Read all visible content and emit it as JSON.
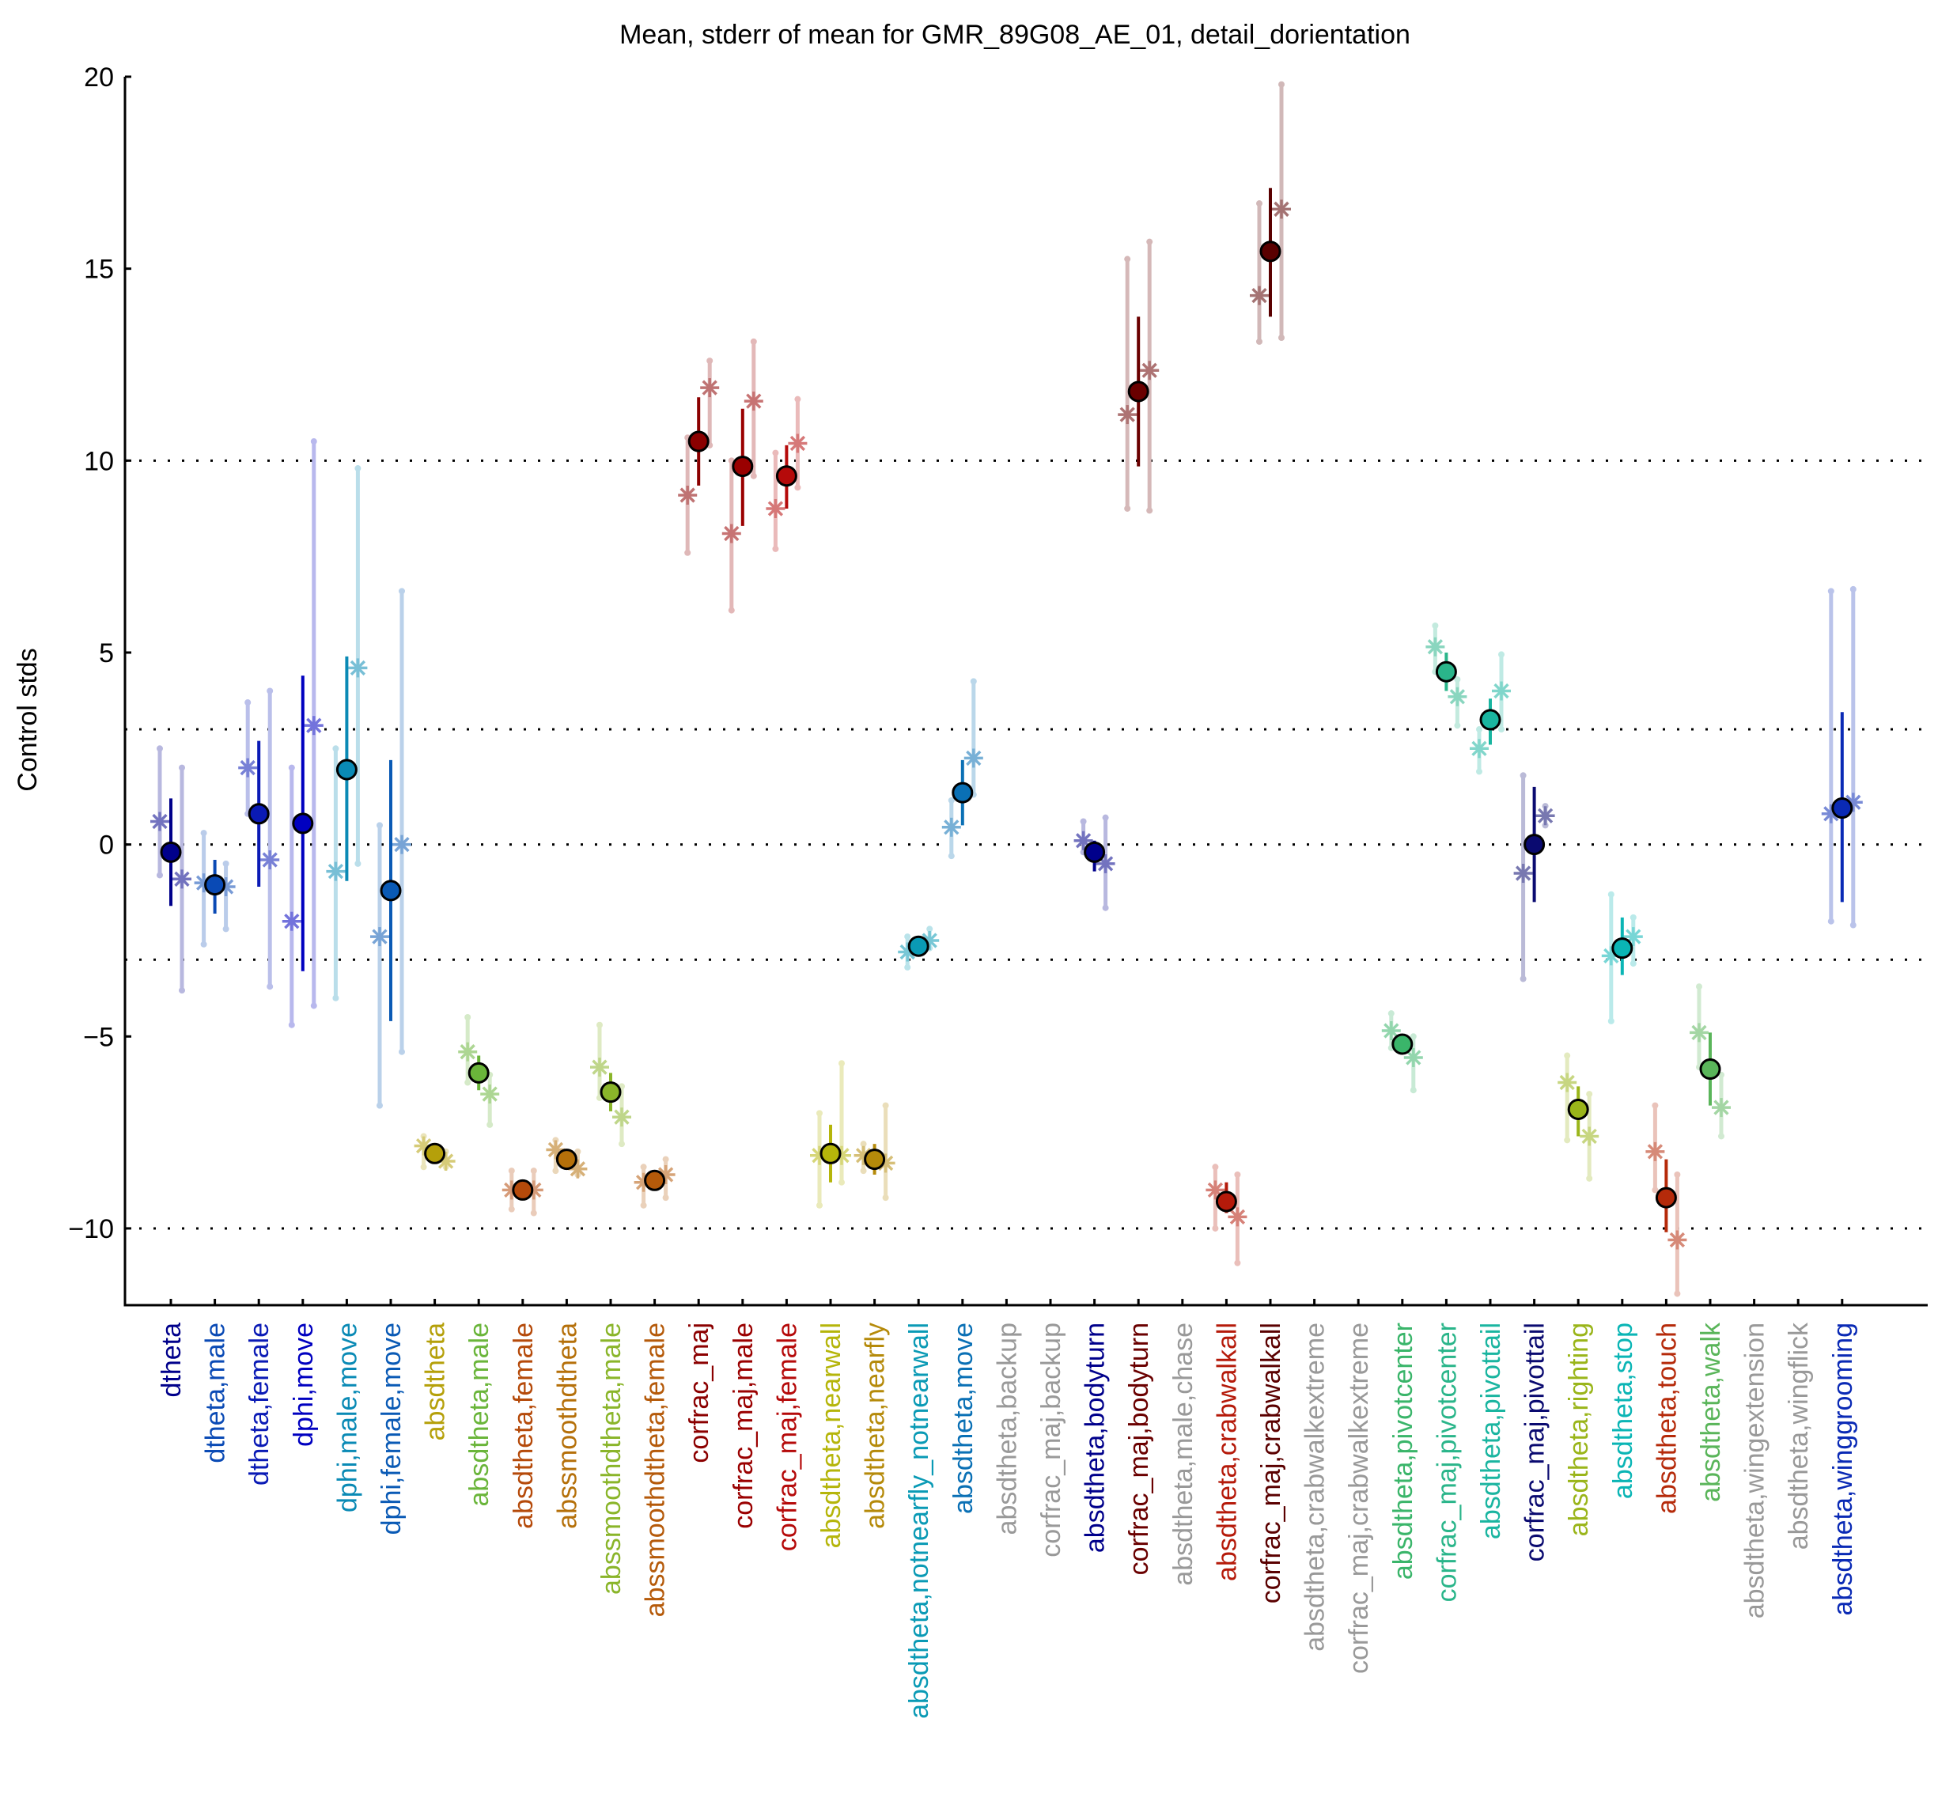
{
  "chart_data": {
    "type": "scatter",
    "subtype": "errorbar-dotplot",
    "title": "Mean, stderr of mean for GMR_89G08_AE_01, detail_dorientation",
    "xlabel": "",
    "ylabel": "Control stds",
    "ylim": [
      -12,
      20
    ],
    "yticks": [
      -10,
      -5,
      0,
      5,
      10,
      15,
      20
    ],
    "ytick_labels": [
      "−10",
      "−5",
      "0",
      "5",
      "10",
      "15",
      "20"
    ],
    "reference_lines": [
      -10,
      -3,
      0,
      3,
      10
    ],
    "reference_line_style": "dotted",
    "grid": false,
    "legend": "none",
    "marker_legend": {
      "mean": "filled circle with black outline, dark stderr bar",
      "sub_experiment": "asterisk with light range bar"
    },
    "categories": [
      {
        "label": "dtheta",
        "color": "#00008b",
        "mean": -0.2,
        "sem": [
          -1.6,
          1.2
        ],
        "subs": [
          {
            "value": 0.6,
            "range": [
              -0.8,
              2.5
            ]
          },
          {
            "value": -0.9,
            "range": [
              -3.8,
              2.0
            ]
          }
        ]
      },
      {
        "label": "dtheta,male",
        "color": "#0a4ab5",
        "mean": -1.05,
        "sem": [
          -1.8,
          -0.4
        ],
        "subs": [
          {
            "value": -1.0,
            "range": [
              -2.6,
              0.3
            ]
          },
          {
            "value": -1.1,
            "range": [
              -2.2,
              -0.5
            ]
          }
        ]
      },
      {
        "label": "dtheta,female",
        "color": "#0a1ab5",
        "mean": 0.8,
        "sem": [
          -1.1,
          2.7
        ],
        "subs": [
          {
            "value": 2.0,
            "range": [
              0.8,
              3.7
            ]
          },
          {
            "value": -0.4,
            "range": [
              -3.7,
              4.0
            ]
          }
        ]
      },
      {
        "label": "dphi,move",
        "color": "#0000c0",
        "mean": 0.55,
        "sem": [
          -3.3,
          4.4
        ],
        "subs": [
          {
            "value": -2.0,
            "range": [
              -4.7,
              2.0
            ]
          },
          {
            "value": 3.1,
            "range": [
              -4.2,
              10.5
            ]
          }
        ]
      },
      {
        "label": "dphi,male,move",
        "color": "#0a8ab5",
        "mean": 1.95,
        "sem": [
          -0.95,
          4.9
        ],
        "subs": [
          {
            "value": -0.7,
            "range": [
              -4.0,
              2.5
            ]
          },
          {
            "value": 4.6,
            "range": [
              -0.5,
              9.8
            ]
          }
        ]
      },
      {
        "label": "dphi,female,move",
        "color": "#0a5ab5",
        "mean": -1.2,
        "sem": [
          -4.6,
          2.2
        ],
        "subs": [
          {
            "value": -2.4,
            "range": [
              -6.8,
              0.5
            ]
          },
          {
            "value": 0.0,
            "range": [
              -5.4,
              6.6
            ]
          }
        ]
      },
      {
        "label": "absdtheta",
        "color": "#b5a00a",
        "mean": -8.05,
        "sem": [
          -8.2,
          -7.9
        ],
        "subs": [
          {
            "value": -7.85,
            "range": [
              -8.4,
              -7.6
            ]
          },
          {
            "value": -8.25,
            "range": [
              -8.4,
              -8.0
            ]
          }
        ]
      },
      {
        "label": "absdtheta,male",
        "color": "#6ab53a",
        "mean": -5.95,
        "sem": [
          -6.4,
          -5.5
        ],
        "subs": [
          {
            "value": -5.4,
            "range": [
              -6.2,
              -4.5
            ]
          },
          {
            "value": -6.5,
            "range": [
              -7.3,
              -6.0
            ]
          }
        ]
      },
      {
        "label": "absdtheta,female",
        "color": "#b54a0a",
        "mean": -9.0,
        "sem": [
          -9.1,
          -8.9
        ],
        "subs": [
          {
            "value": -9.0,
            "range": [
              -9.5,
              -8.5
            ]
          },
          {
            "value": -9.0,
            "range": [
              -9.6,
              -8.5
            ]
          }
        ]
      },
      {
        "label": "abssmoothdtheta",
        "color": "#b5700a",
        "mean": -8.2,
        "sem": [
          -8.3,
          -8.1
        ],
        "subs": [
          {
            "value": -7.95,
            "range": [
              -8.5,
              -7.7
            ]
          },
          {
            "value": -8.45,
            "range": [
              -8.6,
              -8.0
            ]
          }
        ]
      },
      {
        "label": "abssmoothdtheta,male",
        "color": "#8ab52a",
        "mean": -6.45,
        "sem": [
          -6.95,
          -5.95
        ],
        "subs": [
          {
            "value": -5.8,
            "range": [
              -6.6,
              -4.7
            ]
          },
          {
            "value": -7.1,
            "range": [
              -7.8,
              -6.3
            ]
          }
        ]
      },
      {
        "label": "abssmoothdtheta,female",
        "color": "#b55a0a",
        "mean": -8.75,
        "sem": [
          -8.85,
          -8.6
        ],
        "subs": [
          {
            "value": -8.8,
            "range": [
              -9.4,
              -8.4
            ]
          },
          {
            "value": -8.6,
            "range": [
              -9.2,
              -8.2
            ]
          }
        ]
      },
      {
        "label": "corfrac_maj",
        "color": "#8b0000",
        "mean": 10.5,
        "sem": [
          9.35,
          11.65
        ],
        "subs": [
          {
            "value": 9.1,
            "range": [
              7.6,
              10.6
            ]
          },
          {
            "value": 11.9,
            "range": [
              10.4,
              12.6
            ]
          }
        ]
      },
      {
        "label": "corfrac_maj,male",
        "color": "#9a0000",
        "mean": 9.85,
        "sem": [
          8.3,
          11.35
        ],
        "subs": [
          {
            "value": 8.1,
            "range": [
              6.1,
              10.0
            ]
          },
          {
            "value": 11.55,
            "range": [
              9.6,
              13.1
            ]
          }
        ]
      },
      {
        "label": "corfrac_maj,female",
        "color": "#b50a0a",
        "mean": 9.6,
        "sem": [
          8.75,
          10.4
        ],
        "subs": [
          {
            "value": 8.75,
            "range": [
              7.7,
              10.2
            ]
          },
          {
            "value": 10.45,
            "range": [
              9.3,
              11.6
            ]
          }
        ]
      },
      {
        "label": "absdtheta,nearwall",
        "color": "#b5b50a",
        "mean": -8.05,
        "sem": [
          -8.8,
          -7.3
        ],
        "subs": [
          {
            "value": -8.1,
            "range": [
              -9.4,
              -7.0
            ]
          },
          {
            "value": -8.1,
            "range": [
              -8.8,
              -5.7
            ]
          }
        ]
      },
      {
        "label": "absdtheta,nearfly",
        "color": "#b58a0a",
        "mean": -8.2,
        "sem": [
          -8.6,
          -7.8
        ],
        "subs": [
          {
            "value": -8.1,
            "range": [
              -8.5,
              -7.8
            ]
          },
          {
            "value": -8.3,
            "range": [
              -9.2,
              -6.8
            ]
          }
        ]
      },
      {
        "label": "absdtheta,notnearfly_notnearwall",
        "color": "#0a9ab5",
        "mean": -2.65,
        "sem": [
          -2.7,
          -2.6
        ],
        "subs": [
          {
            "value": -2.8,
            "range": [
              -3.2,
              -2.4
            ]
          },
          {
            "value": -2.5,
            "range": [
              -2.7,
              -2.2
            ]
          }
        ]
      },
      {
        "label": "absdtheta,move",
        "color": "#0a70b5",
        "mean": 1.35,
        "sem": [
          0.5,
          2.2
        ],
        "subs": [
          {
            "value": 0.45,
            "range": [
              -0.3,
              1.15
            ]
          },
          {
            "value": 2.25,
            "range": [
              1.3,
              4.25
            ]
          }
        ]
      },
      {
        "label": "absdtheta,backup",
        "color": "#999999",
        "mean": null,
        "sem": null,
        "subs": []
      },
      {
        "label": "corfrac_maj,backup",
        "color": "#999999",
        "mean": null,
        "sem": null,
        "subs": []
      },
      {
        "label": "absdtheta,bodyturn",
        "color": "#00008b",
        "mean": -0.2,
        "sem": [
          -0.7,
          0.1
        ],
        "subs": [
          {
            "value": 0.1,
            "range": [
              -0.2,
              0.6
            ]
          },
          {
            "value": -0.5,
            "range": [
              -1.65,
              0.7
            ]
          }
        ]
      },
      {
        "label": "corfrac_maj,bodyturn",
        "color": "#6a0000",
        "mean": 11.8,
        "sem": [
          9.85,
          13.75
        ],
        "subs": [
          {
            "value": 11.2,
            "range": [
              8.75,
              15.25
            ]
          },
          {
            "value": 12.35,
            "range": [
              8.7,
              15.7
            ]
          }
        ]
      },
      {
        "label": "absdtheta,male,chase",
        "color": "#999999",
        "mean": null,
        "sem": null,
        "subs": []
      },
      {
        "label": "absdtheta,crabwalkall",
        "color": "#b51a0a",
        "mean": -9.3,
        "sem": [
          -9.6,
          -8.8
        ],
        "subs": [
          {
            "value": -9.0,
            "range": [
              -10.0,
              -8.4
            ]
          },
          {
            "value": -9.7,
            "range": [
              -10.9,
              -8.6
            ]
          }
        ]
      },
      {
        "label": "corfrac_maj,crabwalkall",
        "color": "#5a0000",
        "mean": 15.45,
        "sem": [
          13.75,
          17.1
        ],
        "subs": [
          {
            "value": 14.3,
            "range": [
              13.1,
              16.7
            ]
          },
          {
            "value": 16.55,
            "range": [
              13.2,
              19.8
            ]
          }
        ]
      },
      {
        "label": "absdtheta,crabwalkextreme",
        "color": "#999999",
        "mean": null,
        "sem": null,
        "subs": []
      },
      {
        "label": "corfrac_maj,crabwalkextreme",
        "color": "#999999",
        "mean": null,
        "sem": null,
        "subs": []
      },
      {
        "label": "absdtheta,pivotcenter",
        "color": "#3ab56a",
        "mean": -5.2,
        "sem": [
          -5.3,
          -5.0
        ],
        "subs": [
          {
            "value": -4.85,
            "range": [
              -5.3,
              -4.4
            ]
          },
          {
            "value": -5.55,
            "range": [
              -6.4,
              -5.0
            ]
          }
        ]
      },
      {
        "label": "corfrac_maj,pivotcenter",
        "color": "#2ab58a",
        "mean": 4.5,
        "sem": [
          4.0,
          5.0
        ],
        "subs": [
          {
            "value": 5.15,
            "range": [
              4.5,
              5.7
            ]
          },
          {
            "value": 3.85,
            "range": [
              3.1,
              4.3
            ]
          }
        ]
      },
      {
        "label": "absdtheta,pivottail",
        "color": "#1ab5a0",
        "mean": 3.25,
        "sem": [
          2.6,
          3.8
        ],
        "subs": [
          {
            "value": 2.5,
            "range": [
              1.9,
              3.0
            ]
          },
          {
            "value": 4.0,
            "range": [
              3.0,
              4.95
            ]
          }
        ]
      },
      {
        "label": "corfrac_maj,pivottail",
        "color": "#0a0a70",
        "mean": 0.0,
        "sem": [
          -1.5,
          1.5
        ],
        "subs": [
          {
            "value": -0.75,
            "range": [
              -3.5,
              1.8
            ]
          },
          {
            "value": 0.75,
            "range": [
              0.5,
              1.0
            ]
          }
        ]
      },
      {
        "label": "absdtheta,righting",
        "color": "#9ab51a",
        "mean": -6.9,
        "sem": [
          -7.6,
          -6.3
        ],
        "subs": [
          {
            "value": -6.2,
            "range": [
              -7.7,
              -5.5
            ]
          },
          {
            "value": -7.6,
            "range": [
              -8.7,
              -6.5
            ]
          }
        ]
      },
      {
        "label": "absdtheta,stop",
        "color": "#0ab5b5",
        "mean": -2.7,
        "sem": [
          -3.4,
          -1.9
        ],
        "subs": [
          {
            "value": -2.9,
            "range": [
              -4.6,
              -1.3
            ]
          },
          {
            "value": -2.4,
            "range": [
              -3.1,
              -1.9
            ]
          }
        ]
      },
      {
        "label": "absdtheta,touch",
        "color": "#b52a0a",
        "mean": -9.2,
        "sem": [
          -10.1,
          -8.2
        ],
        "subs": [
          {
            "value": -8.0,
            "range": [
              -9.0,
              -6.8
            ]
          },
          {
            "value": -10.3,
            "range": [
              -11.7,
              -8.6
            ]
          }
        ]
      },
      {
        "label": "absdtheta,walk",
        "color": "#5ab55a",
        "mean": -5.85,
        "sem": [
          -6.8,
          -4.9
        ],
        "subs": [
          {
            "value": -4.9,
            "range": [
              -5.8,
              -3.7
            ]
          },
          {
            "value": -6.85,
            "range": [
              -7.6,
              -6.0
            ]
          }
        ]
      },
      {
        "label": "absdtheta,wingextension",
        "color": "#999999",
        "mean": null,
        "sem": null,
        "subs": []
      },
      {
        "label": "absdtheta,wingflick",
        "color": "#999999",
        "mean": null,
        "sem": null,
        "subs": []
      },
      {
        "label": "absdtheta,winggrooming",
        "color": "#0a2ab5",
        "mean": 0.95,
        "sem": [
          -1.5,
          3.45
        ],
        "subs": [
          {
            "value": 0.8,
            "range": [
              -2.0,
              6.6
            ]
          },
          {
            "value": 1.1,
            "range": [
              -2.1,
              6.65
            ]
          }
        ]
      }
    ]
  }
}
